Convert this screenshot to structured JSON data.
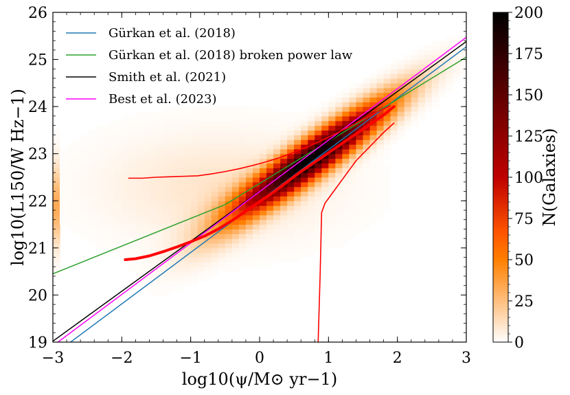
{
  "chart_data": {
    "type": "heatmap",
    "xlabel": "log10(ψ/M⊙ yr−1)",
    "ylabel": "log10(L150/W Hz−1)",
    "xlim": [
      -3,
      3
    ],
    "ylim": [
      19,
      26
    ],
    "x_ticks": [
      -3,
      -2,
      -1,
      0,
      1,
      2,
      3
    ],
    "y_ticks": [
      19,
      20,
      21,
      22,
      23,
      24,
      25,
      26
    ],
    "x_tick_labels": [
      "−3",
      "−2",
      "−1",
      "0",
      "1",
      "2",
      "3"
    ],
    "y_tick_labels": [
      "19",
      "20",
      "21",
      "22",
      "23",
      "24",
      "25",
      "26"
    ],
    "grid": false,
    "legend_position": "top-left",
    "heatmap": {
      "colormap": "gist_heat_r",
      "vmin": 0,
      "vmax": 200,
      "ridge": {
        "slope": 1.0,
        "intercept": 22.15
      },
      "peak": {
        "x": 0.75,
        "y": 23.0,
        "value": 200
      },
      "edge_strip_x": -3.0,
      "edge_strip_y": 21.9
    },
    "colorbar": {
      "label": "N(Galaxies)",
      "ticks": [
        0,
        25,
        50,
        75,
        100,
        125,
        150,
        175,
        200
      ],
      "tick_labels": [
        "0",
        "25",
        "50",
        "75",
        "100",
        "125",
        "150",
        "175",
        "200"
      ]
    },
    "series": [
      {
        "name": "Gürkan et al. (2018)",
        "color": "#1f77b4",
        "kind": "line",
        "x": [
          -3,
          3
        ],
        "y": [
          18.72,
          25.27
        ]
      },
      {
        "name": "Gürkan et al. (2018) broken power law",
        "color": "#2ca02c",
        "kind": "line",
        "x": [
          -3,
          -0.5,
          3
        ],
        "y": [
          20.45,
          21.92,
          25.05
        ]
      },
      {
        "name": "Smith et al. (2021)",
        "color": "#000000",
        "kind": "line",
        "x": [
          -3,
          3
        ],
        "y": [
          19.02,
          25.38
        ]
      },
      {
        "name": "Best et al. (2023)",
        "color": "#ff00ff",
        "kind": "line",
        "x": [
          -3,
          3
        ],
        "y": [
          18.92,
          25.47
        ]
      }
    ],
    "median_track": {
      "color": "#ff0000",
      "x": [
        -1.95,
        -1.8,
        -1.6,
        -1.4,
        -1.2,
        -1.0,
        -0.8,
        -0.6,
        -0.4,
        -0.2,
        0.0,
        0.2,
        0.4,
        0.6,
        0.8,
        1.0,
        1.2,
        1.4,
        1.6,
        1.8,
        1.95
      ],
      "y": [
        20.75,
        20.77,
        20.83,
        20.92,
        21.02,
        21.13,
        21.25,
        21.4,
        21.58,
        21.78,
        21.98,
        22.18,
        22.4,
        22.62,
        22.82,
        23.02,
        23.22,
        23.42,
        23.62,
        23.82,
        24.0
      ]
    },
    "upper_envelope": {
      "color": "#ff0000",
      "x": [
        -1.9,
        -1.7,
        -1.5,
        -1.3,
        -1.1,
        -0.9,
        -0.7,
        -0.5,
        -0.3,
        -0.1,
        0.1,
        0.3,
        0.5,
        0.7,
        0.9,
        1.1,
        1.3,
        1.5,
        1.7,
        1.9
      ],
      "y": [
        22.48,
        22.48,
        22.5,
        22.51,
        22.52,
        22.53,
        22.57,
        22.62,
        22.68,
        22.75,
        22.83,
        22.92,
        23.03,
        23.15,
        23.28,
        23.42,
        23.57,
        23.73,
        23.88,
        24.02
      ]
    },
    "lower_envelope": {
      "color": "#ff0000",
      "x": [
        0.85,
        0.88,
        0.9,
        0.95,
        1.0,
        1.1,
        1.2,
        1.3,
        1.4,
        1.5,
        1.6,
        1.7,
        1.8,
        1.95
      ],
      "y": [
        19.0,
        20.5,
        21.75,
        21.95,
        22.05,
        22.25,
        22.45,
        22.65,
        22.85,
        23.0,
        23.15,
        23.3,
        23.45,
        23.65
      ]
    }
  }
}
